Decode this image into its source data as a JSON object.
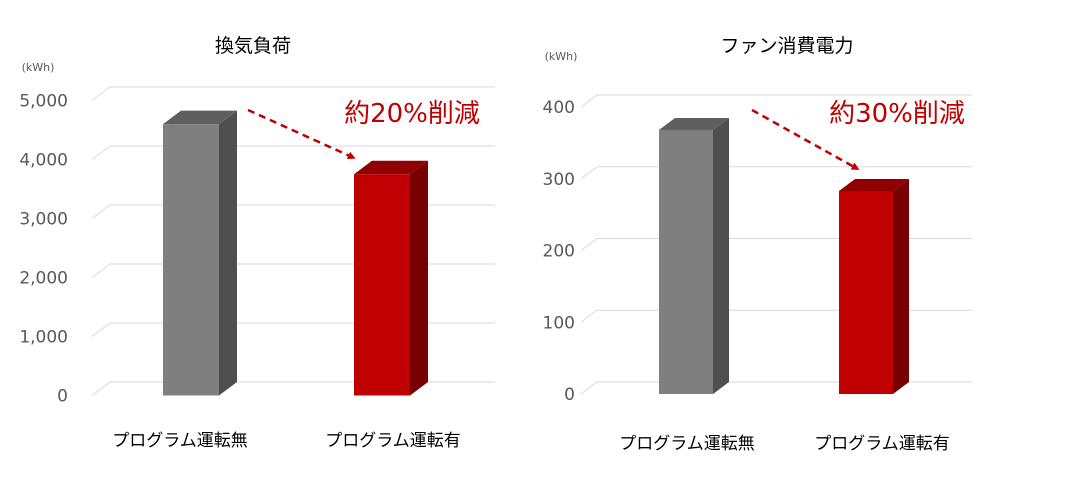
{
  "chart_data": [
    {
      "type": "bar",
      "title": "換気負荷",
      "unit": "(kWh)",
      "categories": [
        "プログラム運転無",
        "プログラム運転有"
      ],
      "values": [
        4600,
        3750
      ],
      "ylim": [
        0,
        5000
      ],
      "yticks": [
        "0",
        "1,000",
        "2,000",
        "3,000",
        "4,000",
        "5,000"
      ],
      "ytick_values": [
        0,
        1000,
        2000,
        3000,
        4000,
        5000
      ],
      "grid": true,
      "bar_colors": [
        "#7f7f7f",
        "#c00000"
      ],
      "annotation": "約20%削減",
      "annotation_color": "#c00000"
    },
    {
      "type": "bar",
      "title": "ファン消費電力",
      "unit": "(kWh)",
      "categories": [
        "プログラム運転無",
        "プログラム運転有"
      ],
      "values": [
        368,
        283
      ],
      "ylim": [
        0,
        400
      ],
      "yticks": [
        "0",
        "100",
        "200",
        "300",
        "400"
      ],
      "ytick_values": [
        0,
        100,
        200,
        300,
        400
      ],
      "grid": true,
      "bar_colors": [
        "#7f7f7f",
        "#c00000"
      ],
      "annotation": "約30%削減",
      "annotation_color": "#c00000"
    }
  ]
}
